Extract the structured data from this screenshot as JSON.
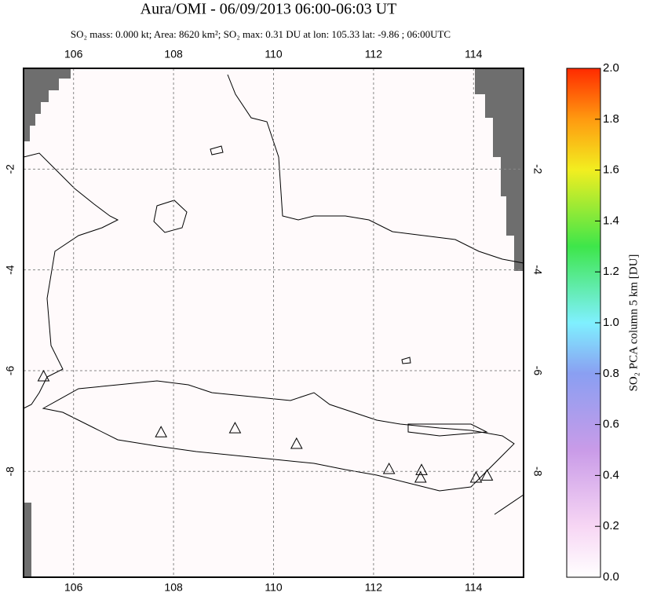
{
  "chart_data": {
    "type": "map",
    "title": "Aura/OMI - 06/09/2013 06:00-06:03 UT",
    "subtitle": "SO₂ mass: 0.000 kt; Area: 8620 km²; SO₂ max: 0.31 DU at lon: 105.33 lat: -9.86 ; 06:00UTC",
    "xlim": [
      105,
      115
    ],
    "xticks": [
      106,
      108,
      110,
      112,
      114
    ],
    "ylim": [
      -10.1,
      0
    ],
    "yticks": [
      -2,
      -4,
      -6,
      -8
    ],
    "grid": true,
    "volcanoes": {
      "lon": [
        105.4,
        107.75,
        109.23,
        110.46,
        112.31,
        112.96,
        112.94,
        114.05,
        114.27
      ],
      "lat": [
        -6.11,
        -7.22,
        -7.14,
        -7.45,
        -7.95,
        -7.97,
        -8.12,
        -8.12,
        -8.08
      ]
    },
    "colorbar": {
      "label": "SO₂ PCA column 5 km [DU]",
      "lim": [
        0,
        2
      ],
      "ticks": [
        {
          "value": 0,
          "label": "0.0"
        },
        0.2,
        0.4,
        0.6,
        0.8,
        {
          "value": 1,
          "label": "1.0"
        },
        1.2,
        1.4,
        1.6,
        1.8,
        {
          "value": 2,
          "label": "2.0"
        }
      ]
    }
  }
}
